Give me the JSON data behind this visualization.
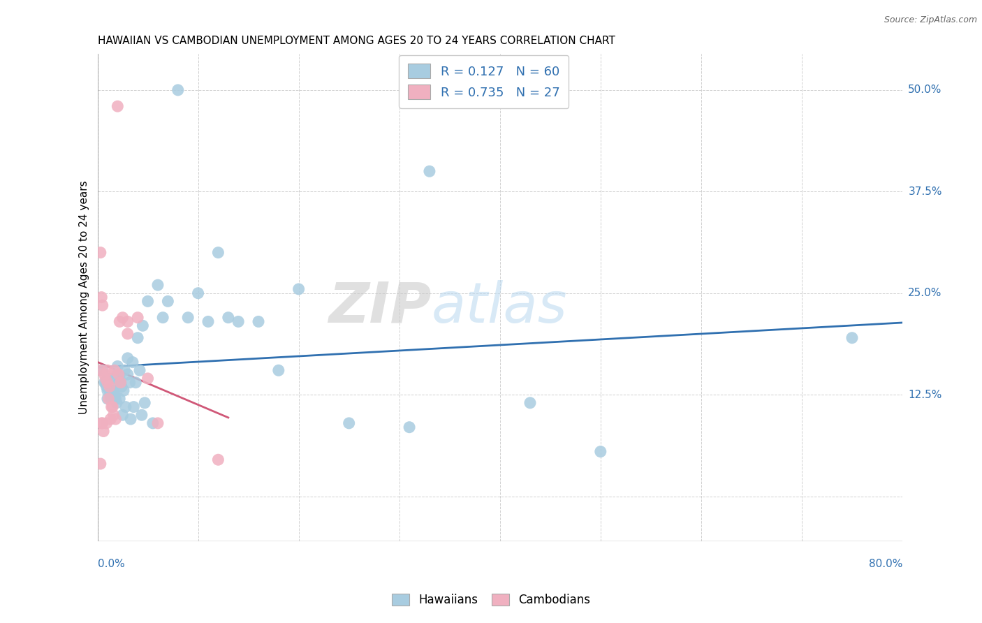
{
  "title": "HAWAIIAN VS CAMBODIAN UNEMPLOYMENT AMONG AGES 20 TO 24 YEARS CORRELATION CHART",
  "source": "Source: ZipAtlas.com",
  "ylabel": "Unemployment Among Ages 20 to 24 years",
  "xlim": [
    0.0,
    0.8
  ],
  "ylim": [
    -0.055,
    0.545
  ],
  "ytick_vals": [
    0.0,
    0.125,
    0.25,
    0.375,
    0.5
  ],
  "ytick_labels": [
    "",
    "12.5%",
    "25.0%",
    "37.5%",
    "50.0%"
  ],
  "xtick_vals": [
    0.0,
    0.1,
    0.2,
    0.3,
    0.4,
    0.5,
    0.6,
    0.7,
    0.8
  ],
  "legend_hawaiian_R": "0.127",
  "legend_hawaiian_N": "60",
  "legend_cambodian_R": "0.735",
  "legend_cambodian_N": "27",
  "hawaiian_color": "#a8cce0",
  "cambodian_color": "#f0b0c0",
  "hawaiian_line_color": "#3070b0",
  "cambodian_line_color": "#d05878",
  "hawaiian_x": [
    0.005,
    0.007,
    0.008,
    0.009,
    0.01,
    0.01,
    0.01,
    0.012,
    0.013,
    0.014,
    0.015,
    0.015,
    0.016,
    0.017,
    0.018,
    0.019,
    0.02,
    0.02,
    0.021,
    0.022,
    0.022,
    0.023,
    0.024,
    0.025,
    0.026,
    0.027,
    0.028,
    0.03,
    0.03,
    0.032,
    0.033,
    0.035,
    0.036,
    0.038,
    0.04,
    0.042,
    0.044,
    0.045,
    0.047,
    0.05,
    0.055,
    0.06,
    0.065,
    0.07,
    0.08,
    0.09,
    0.1,
    0.11,
    0.12,
    0.13,
    0.14,
    0.16,
    0.18,
    0.2,
    0.25,
    0.31,
    0.33,
    0.43,
    0.5,
    0.75
  ],
  "hawaiian_y": [
    0.155,
    0.14,
    0.14,
    0.135,
    0.145,
    0.13,
    0.12,
    0.13,
    0.125,
    0.12,
    0.145,
    0.13,
    0.13,
    0.125,
    0.12,
    0.115,
    0.16,
    0.15,
    0.14,
    0.145,
    0.12,
    0.14,
    0.135,
    0.1,
    0.13,
    0.155,
    0.11,
    0.17,
    0.15,
    0.14,
    0.095,
    0.165,
    0.11,
    0.14,
    0.195,
    0.155,
    0.1,
    0.21,
    0.115,
    0.24,
    0.09,
    0.26,
    0.22,
    0.24,
    0.5,
    0.22,
    0.25,
    0.215,
    0.3,
    0.22,
    0.215,
    0.215,
    0.155,
    0.255,
    0.09,
    0.085,
    0.4,
    0.115,
    0.055,
    0.195
  ],
  "cambodian_x": [
    0.003,
    0.004,
    0.005,
    0.006,
    0.007,
    0.008,
    0.009,
    0.01,
    0.011,
    0.012,
    0.013,
    0.014,
    0.015,
    0.016,
    0.017,
    0.018,
    0.02,
    0.021,
    0.022,
    0.023,
    0.025,
    0.03,
    0.03,
    0.04,
    0.05,
    0.06,
    0.12
  ],
  "cambodian_y": [
    0.155,
    0.09,
    0.09,
    0.08,
    0.15,
    0.145,
    0.09,
    0.14,
    0.12,
    0.135,
    0.095,
    0.11,
    0.11,
    0.1,
    0.155,
    0.095,
    0.48,
    0.15,
    0.215,
    0.14,
    0.22,
    0.215,
    0.2,
    0.22,
    0.145,
    0.09,
    0.045
  ],
  "cambodian_isolated": [
    [
      0.003,
      0.3
    ],
    [
      0.005,
      0.235
    ],
    [
      0.004,
      0.245
    ],
    [
      0.003,
      0.04
    ],
    [
      0.01,
      0.155
    ]
  ],
  "watermark_zip": "ZIP",
  "watermark_atlas": "atlas"
}
